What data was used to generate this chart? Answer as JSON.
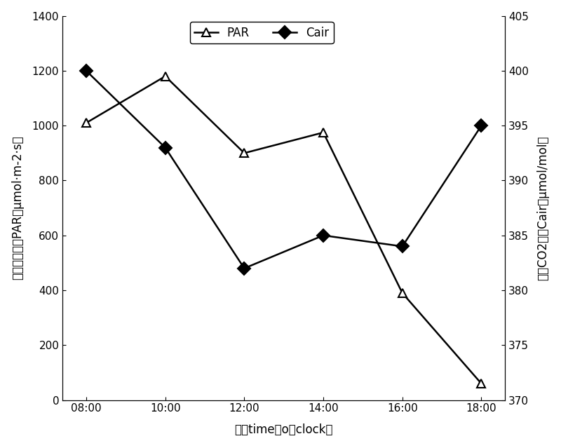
{
  "x_labels": [
    "08:00",
    "10:00",
    "12:00",
    "14:00",
    "16:00",
    "18:00"
  ],
  "x_values": [
    0,
    1,
    2,
    3,
    4,
    5
  ],
  "PAR_values": [
    1010,
    1180,
    900,
    975,
    390,
    60
  ],
  "Cair_values": [
    400,
    393,
    382,
    385,
    384,
    395
  ],
  "PAR_ylim": [
    0,
    1400
  ],
  "PAR_yticks": [
    0,
    200,
    400,
    600,
    800,
    1000,
    1200,
    1400
  ],
  "Cair_ylim": [
    370,
    405
  ],
  "Cair_yticks": [
    370,
    375,
    380,
    385,
    390,
    395,
    400,
    405
  ],
  "xlabel": "时间time（o，clock）",
  "ylabel_left": "光合有效辐射PAR（μmol·m-2·s）",
  "ylabel_right": "空气CO2浓度Cair（μmol/mol）",
  "legend_PAR": "PAR",
  "legend_Cair": "Cair",
  "line_color": "#000000",
  "background_color": "#ffffff",
  "axis_fontsize": 12,
  "tick_fontsize": 11,
  "legend_fontsize": 12
}
